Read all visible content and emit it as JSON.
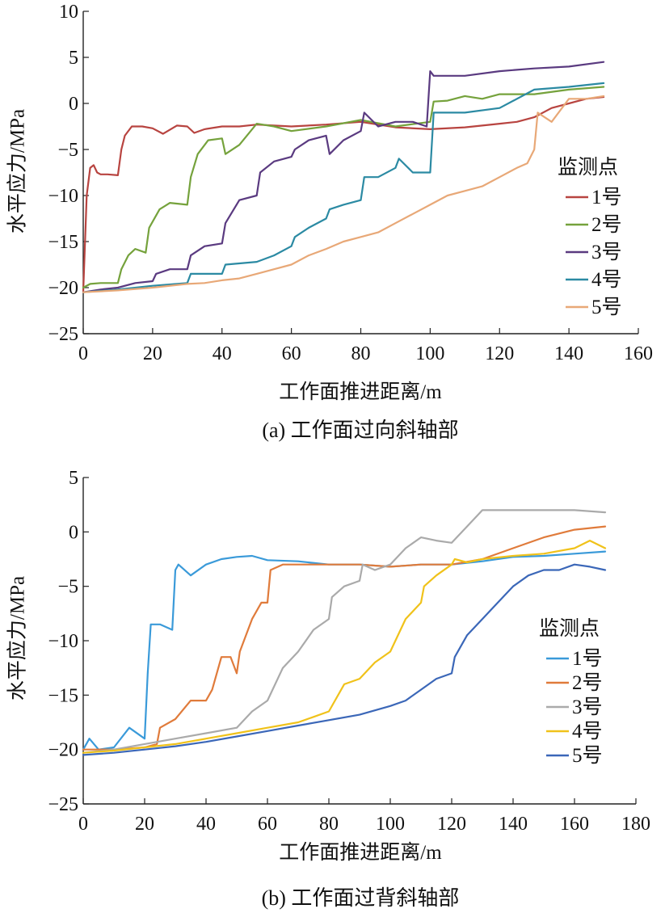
{
  "chart_data": [
    {
      "type": "line",
      "caption": "(a) 工作面过向斜轴部",
      "xlabel": "工作面推进距离/m",
      "ylabel": "水平应力/MPa",
      "xlim": [
        0,
        160
      ],
      "ylim": [
        -25,
        10
      ],
      "xticks": [
        0,
        20,
        40,
        60,
        80,
        100,
        120,
        140,
        160
      ],
      "yticks": [
        10,
        5,
        0,
        -5,
        -10,
        -15,
        -20,
        -25
      ],
      "legend_title": "监测点",
      "legend_position": "right",
      "series": [
        {
          "name": "1号",
          "color": "#b84440",
          "x": [
            0,
            1,
            2,
            3,
            4,
            5,
            7,
            10,
            11,
            12,
            14,
            17,
            20,
            23,
            27,
            30,
            32,
            35,
            40,
            45,
            50,
            60,
            70,
            80,
            90,
            100,
            110,
            120,
            125,
            130,
            135,
            140,
            145,
            150
          ],
          "y": [
            -20.5,
            -10.0,
            -7.0,
            -6.7,
            -7.5,
            -7.7,
            -7.7,
            -7.8,
            -5.0,
            -3.5,
            -2.5,
            -2.5,
            -2.7,
            -3.3,
            -2.4,
            -2.5,
            -3.2,
            -2.8,
            -2.5,
            -2.5,
            -2.3,
            -2.5,
            -2.3,
            -2.0,
            -2.6,
            -2.8,
            -2.6,
            -2.2,
            -2.0,
            -1.5,
            -0.5,
            0.0,
            0.5,
            0.7
          ]
        },
        {
          "name": "2号",
          "color": "#75a23c",
          "x": [
            0,
            2,
            5,
            10,
            11,
            13,
            15,
            18,
            19,
            22,
            25,
            30,
            31,
            33,
            36,
            40,
            41,
            45,
            50,
            55,
            60,
            70,
            80,
            90,
            100,
            101,
            105,
            110,
            115,
            120,
            130,
            140,
            150
          ],
          "y": [
            -20.0,
            -19.6,
            -19.5,
            -19.5,
            -18.0,
            -16.5,
            -15.8,
            -16.2,
            -13.5,
            -11.5,
            -10.8,
            -11.0,
            -8.0,
            -5.5,
            -4.0,
            -3.8,
            -5.5,
            -4.5,
            -2.2,
            -2.5,
            -3.0,
            -2.5,
            -1.8,
            -2.5,
            -2.0,
            0.2,
            0.3,
            0.8,
            0.5,
            1.0,
            1.0,
            1.5,
            1.8
          ]
        },
        {
          "name": "3号",
          "color": "#5a3a80",
          "x": [
            0,
            5,
            10,
            15,
            20,
            21,
            25,
            30,
            31,
            35,
            40,
            41,
            45,
            50,
            51,
            55,
            60,
            61,
            65,
            70,
            71,
            75,
            80,
            81,
            85,
            90,
            95,
            99,
            100,
            101,
            105,
            110,
            120,
            130,
            140,
            150
          ],
          "y": [
            -20.5,
            -20.2,
            -20.0,
            -19.5,
            -19.3,
            -18.5,
            -18.0,
            -18.0,
            -16.5,
            -15.5,
            -15.2,
            -13.0,
            -10.5,
            -10.0,
            -7.5,
            -6.3,
            -5.8,
            -5.0,
            -4.0,
            -3.5,
            -5.5,
            -4.0,
            -3.0,
            -1.0,
            -2.5,
            -2.0,
            -2.0,
            -2.5,
            3.5,
            3.0,
            3.0,
            3.0,
            3.5,
            3.8,
            4.0,
            4.5
          ]
        },
        {
          "name": "4号",
          "color": "#2b8aa3",
          "x": [
            0,
            10,
            20,
            30,
            31,
            40,
            41,
            50,
            55,
            60,
            61,
            65,
            70,
            71,
            75,
            80,
            81,
            85,
            90,
            91,
            95,
            98,
            100,
            101,
            110,
            120,
            130,
            140,
            150
          ],
          "y": [
            -20.5,
            -20.2,
            -19.8,
            -19.5,
            -18.5,
            -18.5,
            -17.5,
            -17.2,
            -16.5,
            -15.5,
            -14.5,
            -13.5,
            -12.5,
            -11.5,
            -11.0,
            -10.5,
            -8.0,
            -8.0,
            -7.0,
            -6.0,
            -7.5,
            -7.5,
            -7.5,
            -1.0,
            -1.0,
            -0.5,
            1.5,
            1.8,
            2.2
          ]
        },
        {
          "name": "5号",
          "color": "#e8a877",
          "x": [
            0,
            10,
            20,
            30,
            35,
            40,
            45,
            50,
            55,
            60,
            65,
            70,
            75,
            80,
            85,
            90,
            95,
            100,
            105,
            110,
            115,
            120,
            125,
            128,
            130,
            131,
            135,
            140,
            145,
            150
          ],
          "y": [
            -20.5,
            -20.3,
            -20.0,
            -19.6,
            -19.5,
            -19.2,
            -19.0,
            -18.5,
            -18.0,
            -17.5,
            -16.5,
            -15.8,
            -15.0,
            -14.5,
            -14.0,
            -13.0,
            -12.0,
            -11.0,
            -10.0,
            -9.5,
            -9.0,
            -8.0,
            -7.0,
            -6.5,
            -5.0,
            -1.0,
            -2.0,
            0.5,
            0.5,
            0.8
          ]
        }
      ]
    },
    {
      "type": "line",
      "caption": "(b) 工作面过背斜轴部",
      "xlabel": "工作面推进距离/m",
      "ylabel": "水平应力/MPa",
      "xlim": [
        0,
        180
      ],
      "ylim": [
        -25,
        5
      ],
      "xticks": [
        0,
        20,
        40,
        60,
        80,
        100,
        120,
        140,
        160,
        180
      ],
      "yticks": [
        5,
        0,
        -5,
        -10,
        -15,
        -20,
        -25
      ],
      "legend_title": "监测点",
      "legend_position": "right",
      "series": [
        {
          "name": "1号",
          "color": "#3a9ad9",
          "x": [
            0,
            2,
            5,
            10,
            15,
            20,
            21,
            22,
            25,
            29,
            30,
            31,
            35,
            40,
            45,
            50,
            55,
            60,
            70,
            80,
            90,
            100,
            110,
            120,
            130,
            140,
            150,
            160,
            170
          ],
          "y": [
            -20.0,
            -19.0,
            -20.0,
            -19.8,
            -18.0,
            -19.0,
            -13.0,
            -8.5,
            -8.5,
            -9.0,
            -3.5,
            -3.0,
            -4.0,
            -3.0,
            -2.5,
            -2.3,
            -2.2,
            -2.6,
            -2.7,
            -3.0,
            -3.0,
            -3.2,
            -3.0,
            -3.0,
            -2.7,
            -2.3,
            -2.2,
            -2.0,
            -1.8
          ]
        },
        {
          "name": "2号",
          "color": "#e07b3b",
          "x": [
            0,
            10,
            20,
            24,
            25,
            30,
            35,
            40,
            42,
            45,
            48,
            50,
            51,
            55,
            58,
            60,
            61,
            65,
            70,
            80,
            90,
            100,
            110,
            120,
            130,
            140,
            150,
            160,
            170
          ],
          "y": [
            -20.0,
            -20.0,
            -19.8,
            -19.5,
            -18.0,
            -17.2,
            -15.5,
            -15.5,
            -14.5,
            -11.5,
            -11.5,
            -13.0,
            -11.0,
            -8.0,
            -6.5,
            -6.5,
            -3.5,
            -3.0,
            -3.0,
            -3.0,
            -3.0,
            -3.2,
            -3.0,
            -3.0,
            -2.5,
            -1.5,
            -0.5,
            0.2,
            0.5
          ]
        },
        {
          "name": "3号",
          "color": "#aaaaaa",
          "x": [
            0,
            10,
            20,
            30,
            40,
            50,
            55,
            60,
            65,
            70,
            75,
            80,
            81,
            85,
            90,
            91,
            95,
            100,
            105,
            110,
            115,
            120,
            125,
            130,
            140,
            150,
            160,
            170
          ],
          "y": [
            -20.3,
            -20.0,
            -19.5,
            -19.0,
            -18.5,
            -18.0,
            -16.5,
            -15.5,
            -12.5,
            -11.0,
            -9.0,
            -8.0,
            -6.0,
            -5.0,
            -4.5,
            -3.0,
            -3.5,
            -3.0,
            -1.5,
            -0.5,
            -0.8,
            -1.0,
            0.5,
            2.0,
            2.0,
            2.0,
            2.0,
            1.8
          ]
        },
        {
          "name": "4号",
          "color": "#f0c21a",
          "x": [
            0,
            10,
            20,
            30,
            40,
            50,
            60,
            70,
            75,
            80,
            85,
            90,
            95,
            100,
            105,
            110,
            111,
            115,
            120,
            121,
            125,
            130,
            140,
            150,
            160,
            165,
            170
          ],
          "y": [
            -20.3,
            -20.1,
            -19.8,
            -19.5,
            -19.0,
            -18.5,
            -18.0,
            -17.5,
            -17.0,
            -16.5,
            -14.0,
            -13.5,
            -12.0,
            -11.0,
            -8.0,
            -6.5,
            -5.0,
            -4.0,
            -3.0,
            -2.5,
            -2.8,
            -2.5,
            -2.2,
            -2.0,
            -1.5,
            -0.8,
            -1.5
          ]
        },
        {
          "name": "5号",
          "color": "#3b67b8",
          "x": [
            0,
            10,
            20,
            30,
            40,
            50,
            60,
            70,
            80,
            90,
            100,
            105,
            110,
            115,
            120,
            121,
            125,
            130,
            135,
            140,
            145,
            150,
            155,
            160,
            165,
            170
          ],
          "y": [
            -20.5,
            -20.3,
            -20.0,
            -19.7,
            -19.3,
            -18.8,
            -18.3,
            -17.8,
            -17.3,
            -16.8,
            -16.0,
            -15.5,
            -14.5,
            -13.5,
            -13.0,
            -11.5,
            -9.5,
            -8.0,
            -6.5,
            -5.0,
            -4.0,
            -3.5,
            -3.5,
            -3.0,
            -3.2,
            -3.5
          ]
        }
      ]
    }
  ]
}
